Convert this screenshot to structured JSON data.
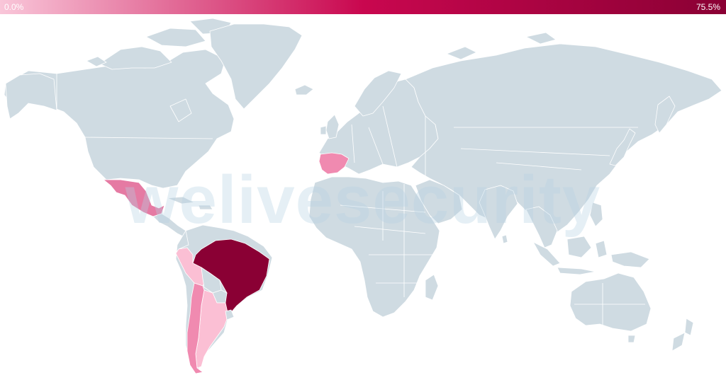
{
  "legend": {
    "min_label": "0.0%",
    "max_label": "75.5%",
    "gradient_start": "#f9c6d9",
    "gradient_mid": "#c9074f",
    "gradient_end": "#8a0034"
  },
  "colors": {
    "no_data": "#cfdbe2",
    "border": "#ffffff",
    "watermark": "#b6d2e3"
  },
  "watermark_text": "welivesecurity",
  "highlighted_countries": [
    {
      "country": "Brazil",
      "value_pct": 75.5,
      "color": "#8a0034"
    },
    {
      "country": "Mexico",
      "color": "#e57aa3"
    },
    {
      "country": "Peru",
      "color": "#fbbfd4"
    },
    {
      "country": "Argentina",
      "color": "#fbbfd4"
    },
    {
      "country": "Chile",
      "color": "#f08ab0"
    },
    {
      "country": "Spain",
      "color": "#f08ab0"
    }
  ]
}
